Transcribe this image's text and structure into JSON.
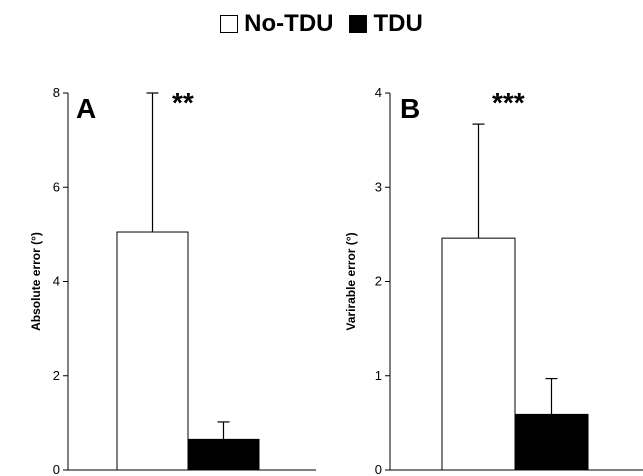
{
  "legend": {
    "items": [
      {
        "label": "No-TDU",
        "color": "#ffffff"
      },
      {
        "label": "TDU",
        "color": "#000000"
      }
    ]
  },
  "chart_data": [
    {
      "type": "bar",
      "panel_label": "A",
      "significance": "**",
      "ylabel": "Absolute error (°)",
      "xlabel": "",
      "ylim": [
        0,
        8
      ],
      "yticks": [
        0,
        2,
        4,
        6,
        8
      ],
      "categories": [
        "No-TDU",
        "TDU"
      ],
      "values": [
        5.05,
        0.65
      ],
      "errors": [
        2.95,
        0.37
      ],
      "colors": [
        "#ffffff",
        "#000000"
      ],
      "grid": false
    },
    {
      "type": "bar",
      "panel_label": "B",
      "significance": "***",
      "ylabel": "Varirable error (°)",
      "xlabel": "",
      "ylim": [
        0,
        4
      ],
      "yticks": [
        0,
        1,
        2,
        3,
        4
      ],
      "categories": [
        "No-TDU",
        "TDU"
      ],
      "values": [
        2.46,
        0.59
      ],
      "errors": [
        1.21,
        0.38
      ],
      "colors": [
        "#ffffff",
        "#000000"
      ],
      "grid": false
    }
  ]
}
